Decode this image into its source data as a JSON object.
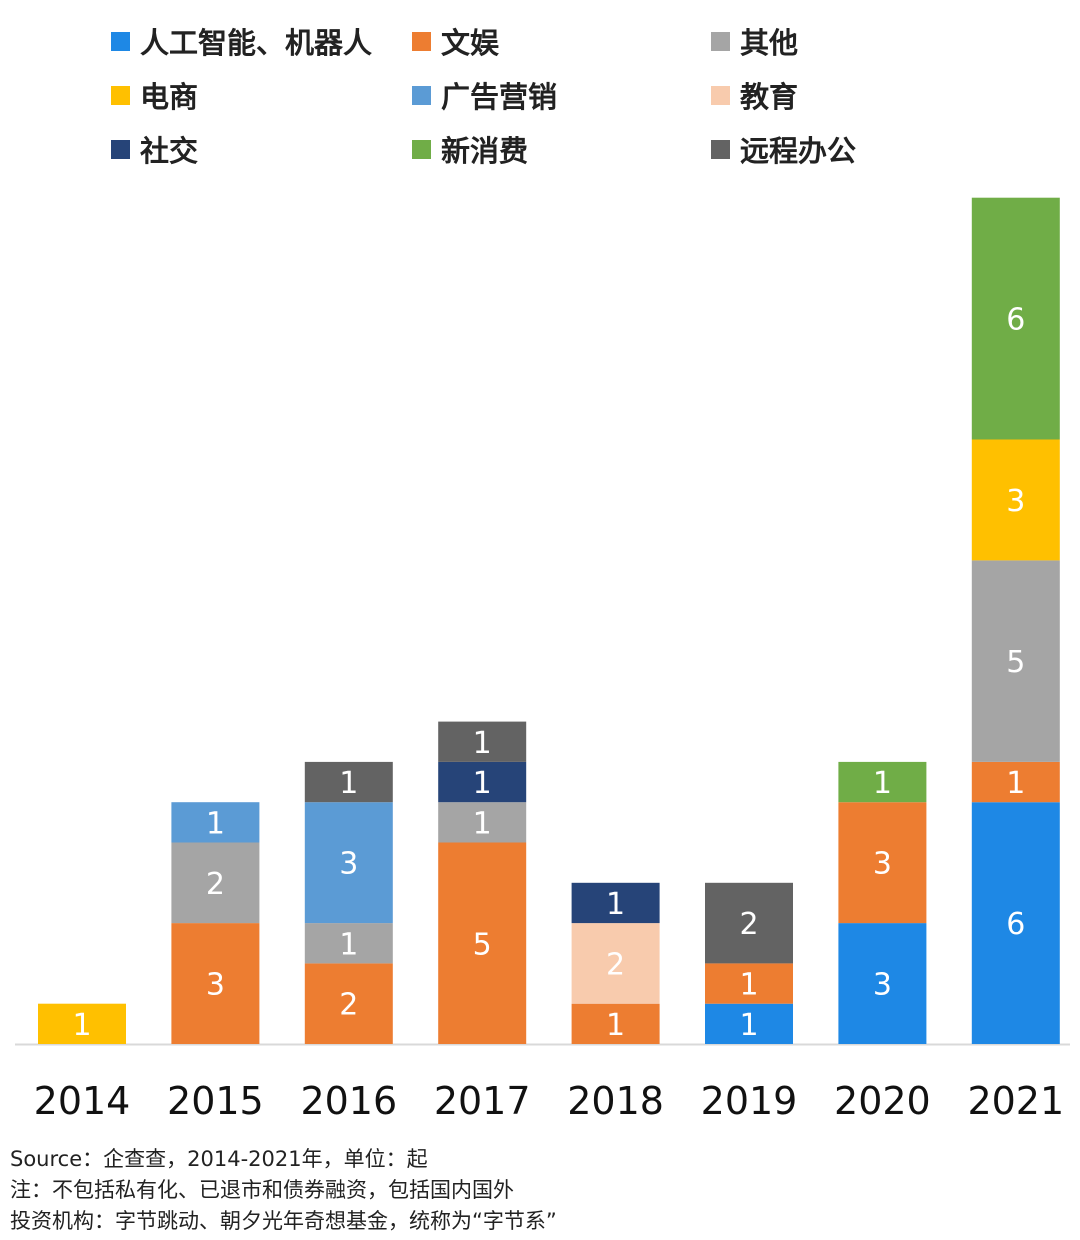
{
  "chart_data": {
    "type": "bar",
    "stacked": true,
    "categories": [
      "2014",
      "2015",
      "2016",
      "2017",
      "2018",
      "2019",
      "2020",
      "2021"
    ],
    "series": [
      {
        "name": "人工智能、机器人",
        "color": "#1E88E5",
        "values": [
          0,
          0,
          0,
          0,
          0,
          1,
          3,
          6
        ]
      },
      {
        "name": "文娱",
        "color": "#ED7D31",
        "values": [
          0,
          3,
          2,
          5,
          1,
          1,
          3,
          1
        ]
      },
      {
        "name": "其他",
        "color": "#A5A5A5",
        "values": [
          0,
          2,
          1,
          1,
          0,
          0,
          0,
          5
        ]
      },
      {
        "name": "电商",
        "color": "#FFC000",
        "values": [
          1,
          0,
          0,
          0,
          0,
          0,
          0,
          3
        ]
      },
      {
        "name": "广告营销",
        "color": "#5B9BD5",
        "values": [
          0,
          1,
          3,
          0,
          0,
          0,
          0,
          0
        ]
      },
      {
        "name": "教育",
        "color": "#F8CBAD",
        "values": [
          0,
          0,
          0,
          0,
          2,
          0,
          0,
          0
        ]
      },
      {
        "name": "社交",
        "color": "#264478",
        "values": [
          0,
          0,
          0,
          1,
          1,
          0,
          0,
          0
        ]
      },
      {
        "name": "新消费",
        "color": "#70AD47",
        "values": [
          0,
          0,
          0,
          0,
          0,
          0,
          1,
          6
        ]
      },
      {
        "name": "远程办公",
        "color": "#636363",
        "values": [
          0,
          0,
          1,
          1,
          0,
          2,
          0,
          0
        ]
      }
    ],
    "stack_order": [
      [
        "电商"
      ],
      [
        "文娱",
        "其他",
        "广告营销"
      ],
      [
        "文娱",
        "其他",
        "广告营销",
        "远程办公"
      ],
      [
        "文娱",
        "其他",
        "社交",
        "远程办公"
      ],
      [
        "文娱",
        "教育",
        "社交"
      ],
      [
        "人工智能、机器人",
        "文娱",
        "远程办公"
      ],
      [
        "人工智能、机器人",
        "文娱",
        "新消费"
      ],
      [
        "人工智能、机器人",
        "文娱",
        "其他",
        "电商",
        "新消费"
      ]
    ],
    "ylim": [
      0,
      21
    ],
    "legend_position": "top",
    "grid": false,
    "data_labels": true
  },
  "notes": [
    "Source：企查查，2014-2021年，单位：起",
    "注：不包括私有化、已退市和债券融资，包括国内国外",
    "投资机构：字节跳动、朝夕光年奇想基金，统称为“字节系”"
  ]
}
